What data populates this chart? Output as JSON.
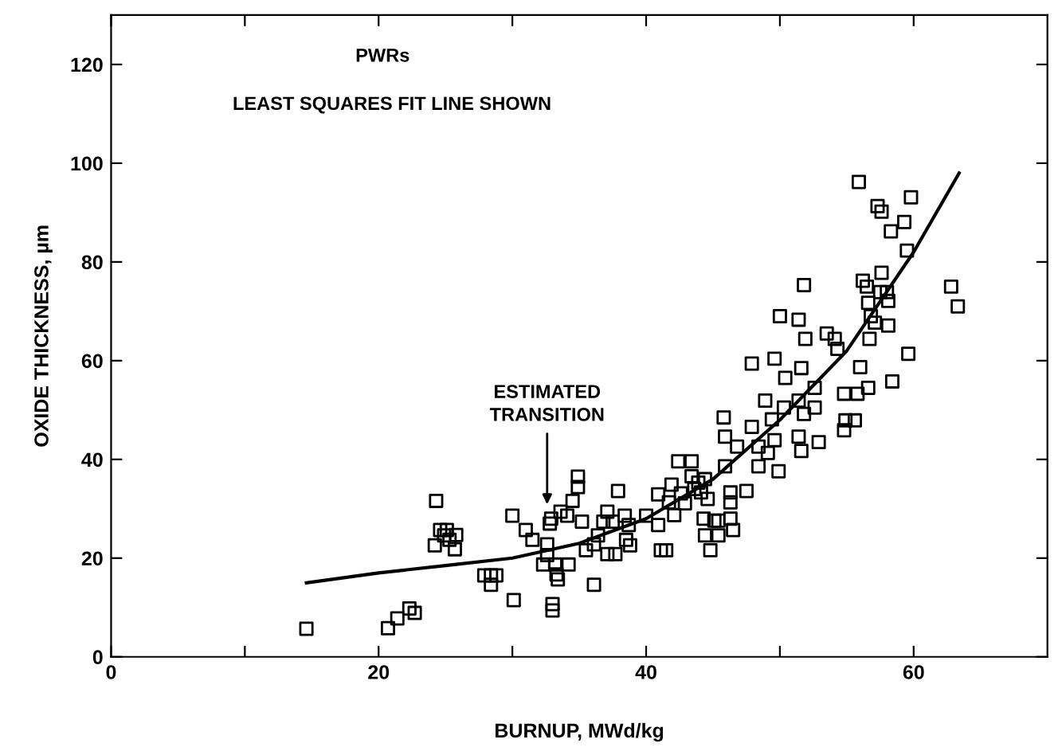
{
  "chart_data": {
    "type": "scatter",
    "xlabel": "BURNUP, MWd/kg",
    "ylabel": "OXIDE THICKNESS, µm",
    "xlim": [
      0,
      70
    ],
    "ylim": [
      0,
      130
    ],
    "xticks": [
      0,
      {
        "value": 10,
        "label": null
      },
      20,
      {
        "value": 30,
        "label": null
      },
      40,
      {
        "value": 50,
        "label": null
      },
      60
    ],
    "yticks": [
      0,
      20,
      40,
      60,
      80,
      100,
      120
    ],
    "grid": false,
    "legend": false,
    "marker": "square",
    "annotations": [
      "PWRs",
      "LEAST SQUARES FIT LINE SHOWN",
      {
        "text": "ESTIMATED\nTRANSITION",
        "x": 32.6,
        "y": 30
      }
    ],
    "series": [
      {
        "color": "#000000",
        "x": [
          14.6,
          20.7,
          21.4,
          22.3,
          22.7,
          24.3,
          24.2,
          24.6,
          24.9,
          25.1,
          25.3,
          25.8,
          25.7,
          27.9,
          28.4,
          28.8,
          28.4,
          30.0,
          30.1,
          31.0,
          31.5,
          32.6,
          32.6,
          32.8,
          32.9,
          32.3,
          33.2,
          34.2,
          33.3,
          33.4,
          33.0,
          33.0,
          33.6,
          34.1,
          34.5,
          34.9,
          34.9,
          35.2,
          35.5,
          36.1,
          36.1,
          36.4,
          36.8,
          37.1,
          37.1,
          37.7,
          37.9,
          37.5,
          38.4,
          38.7,
          38.5,
          38.8,
          40.0,
          40.9,
          40.9,
          41.1,
          41.5,
          41.7,
          41.9,
          42.1,
          42.4,
          42.6,
          42.9,
          43.4,
          43.4,
          43.6,
          43.9,
          44.1,
          44.4,
          44.6,
          44.3,
          44.4,
          44.8,
          45.1,
          45.4,
          45.4,
          45.8,
          45.9,
          45.9,
          46.3,
          46.3,
          46.3,
          46.5,
          46.8,
          47.5,
          47.9,
          47.9,
          48.4,
          48.4,
          48.9,
          49.1,
          49.4,
          49.6,
          49.6,
          49.9,
          50.0,
          50.4,
          50.3,
          51.4,
          51.4,
          51.4,
          51.6,
          51.8,
          51.9,
          51.6,
          51.8,
          52.6,
          52.9,
          52.6,
          53.5,
          54.1,
          54.3,
          54.8,
          54.9,
          54.8,
          55.6,
          55.8,
          56.0,
          55.9,
          56.2,
          56.5,
          56.6,
          56.7,
          56.6,
          56.8,
          57.1,
          57.3,
          57.6,
          57.6,
          57.5,
          58.0,
          58.1,
          58.1,
          58.3,
          58.4,
          59.3,
          59.5,
          59.8,
          59.6,
          62.8,
          63.3
        ],
        "values": [
          5.7,
          5.8,
          7.8,
          9.8,
          8.9,
          31.6,
          22.6,
          25.7,
          24.6,
          25.7,
          23.7,
          24.7,
          21.8,
          16.5,
          16.5,
          16.5,
          14.6,
          28.6,
          11.5,
          25.7,
          23.7,
          22.8,
          20.6,
          27.0,
          28.0,
          18.7,
          18.7,
          18.7,
          16.7,
          15.7,
          10.7,
          9.4,
          29.4,
          28.6,
          31.6,
          36.5,
          34.4,
          27.4,
          21.6,
          22.8,
          14.6,
          24.6,
          27.4,
          29.4,
          20.8,
          20.8,
          33.6,
          27.4,
          28.6,
          26.7,
          23.7,
          22.6,
          28.6,
          32.9,
          26.7,
          21.6,
          21.6,
          31.3,
          34.9,
          28.7,
          39.6,
          33.1,
          31.1,
          39.6,
          36.6,
          34.0,
          35.3,
          33.3,
          36.0,
          32.0,
          28.0,
          24.6,
          21.6,
          27.6,
          24.6,
          27.6,
          48.5,
          44.6,
          38.6,
          33.3,
          31.3,
          28.0,
          25.7,
          42.6,
          33.6,
          59.4,
          46.6,
          42.6,
          38.6,
          51.9,
          41.3,
          48.1,
          60.4,
          43.9,
          37.6,
          69.0,
          56.5,
          50.5,
          68.3,
          51.9,
          44.6,
          41.7,
          75.3,
          64.4,
          58.5,
          49.2,
          50.5,
          43.5,
          54.5,
          65.5,
          64.4,
          62.4,
          45.9,
          47.9,
          53.3,
          47.9,
          53.3,
          58.7,
          96.2,
          76.2,
          75.0,
          54.5,
          64.4,
          71.7,
          69.0,
          67.7,
          91.3,
          90.2,
          77.8,
          73.9,
          73.9,
          72.1,
          67.1,
          86.2,
          55.8,
          88.1,
          82.3,
          93.1,
          61.4,
          75.0,
          71.0
        ]
      },
      {
        "type": "line",
        "color": "#000000",
        "marker": "none",
        "line_style": "solid",
        "x": [
          14.6,
          20,
          25,
          30,
          35,
          40,
          45,
          50,
          55,
          60,
          63.4
        ],
        "values": [
          15,
          17,
          18.5,
          20,
          23,
          28,
          36,
          48,
          62,
          82,
          98
        ]
      }
    ]
  }
}
